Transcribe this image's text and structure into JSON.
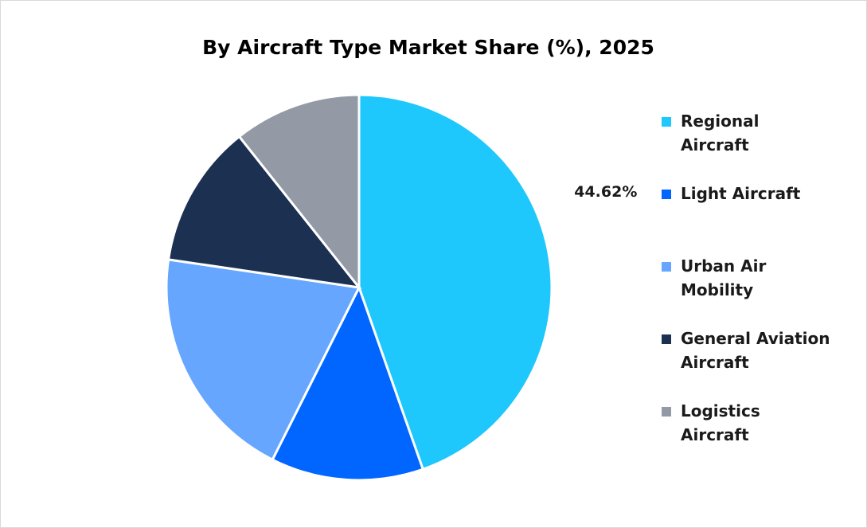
{
  "chart_data": {
    "type": "pie",
    "title": "By Aircraft Type Market Share (%), 2025",
    "categories": [
      "Regional Aircraft",
      "Light Aircraft",
      "Urban Air Mobility",
      "General Aviation Aircraft",
      "Logistics Aircraft"
    ],
    "values": [
      44.62,
      12.8,
      19.9,
      12.0,
      10.68
    ],
    "value_labels": [
      "44.62%",
      null,
      null,
      null,
      null
    ],
    "colors": [
      "#1ec8fc",
      "#0066ff",
      "#66a6ff",
      "#1c3152",
      "#939aa6"
    ],
    "legend": "right"
  }
}
